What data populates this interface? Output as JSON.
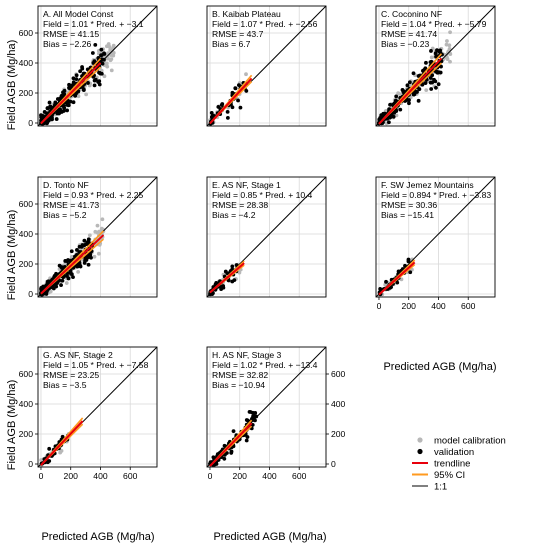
{
  "figure": {
    "shared_axes": {
      "xlabel": "Predicted AGB (Mg/ha)",
      "ylabel": "Field AGB (Mg/ha)",
      "xlim": [
        -20,
        780
      ],
      "ylim": [
        -20,
        780
      ],
      "ticks": [
        0,
        200,
        400,
        600
      ],
      "grid": true
    },
    "legend": {
      "placement": "bottom-right",
      "items": [
        {
          "label": "model calibration",
          "kind": "point",
          "color": "#b8b8b8"
        },
        {
          "label": "validation",
          "kind": "point",
          "color": "#000000"
        },
        {
          "label": "trendline",
          "kind": "line",
          "color": "#e8000b"
        },
        {
          "label": "95% CI",
          "kind": "line",
          "color": "#ff9a1f"
        },
        {
          "label": "1:1",
          "kind": "line",
          "color": "#000000"
        }
      ]
    }
  },
  "chart_data": [
    {
      "type": "scatter",
      "title": "A. All Model Const",
      "equation": "Field = 1.01 * Pred. + −3.1",
      "rmse": "RMSE = 41.15",
      "bias": "Bias = −2.26",
      "slope": 1.01,
      "intercept": -3.1,
      "calib_max": 600,
      "valid_max": 520,
      "spread": 45,
      "n_calib": 220,
      "n_valid": 260,
      "trend_range": [
        0,
        400
      ]
    },
    {
      "type": "scatter",
      "title": "B. Kaibab Plateau",
      "equation": "Field = 1.07 * Pred. + −2.56",
      "rmse": "RMSE = 43.7",
      "bias": "Bias = 6.7",
      "slope": 1.07,
      "intercept": -2.56,
      "calib_max": 330,
      "valid_max": 300,
      "spread": 38,
      "n_calib": 30,
      "n_valid": 45,
      "trend_range": [
        0,
        280
      ]
    },
    {
      "type": "scatter",
      "title": "C. Coconino NF",
      "equation": "Field = 1.04 * Pred. + −5.79",
      "rmse": "RMSE = 41.74",
      "bias": "Bias = −0.23",
      "slope": 1.04,
      "intercept": -5.79,
      "calib_max": 600,
      "valid_max": 520,
      "spread": 45,
      "n_calib": 200,
      "n_valid": 220,
      "trend_range": [
        0,
        420
      ]
    },
    {
      "type": "scatter",
      "title": "D. Tonto NF",
      "equation": "Field = 0.93 * Pred. + 2.25",
      "rmse": "RMSE = 41.73",
      "bias": "Bias = −5.2",
      "slope": 0.93,
      "intercept": 2.25,
      "calib_max": 520,
      "valid_max": 420,
      "spread": 42,
      "n_calib": 180,
      "n_valid": 220,
      "trend_range": [
        0,
        420
      ]
    },
    {
      "type": "scatter",
      "title": "E. AS NF, Stage 1",
      "equation": "Field = 0.85 * Pred. + 10.4",
      "rmse": "RMSE = 28.38",
      "bias": "Bias = −4.2",
      "slope": 0.85,
      "intercept": 10.4,
      "calib_max": 260,
      "valid_max": 240,
      "spread": 25,
      "n_calib": 35,
      "n_valid": 45,
      "trend_range": [
        0,
        230
      ]
    },
    {
      "type": "scatter",
      "title": "F. SW Jemez Mountains",
      "equation": "Field = 0.894 * Pred. + −3.83",
      "rmse": "RMSE = 30.36",
      "bias": "Bias = −15.41",
      "slope": 0.894,
      "intercept": -3.83,
      "calib_max": 280,
      "valid_max": 260,
      "spread": 28,
      "n_calib": 30,
      "n_valid": 35,
      "trend_range": [
        0,
        240
      ]
    },
    {
      "type": "scatter",
      "title": "G. AS NF, Stage 2",
      "equation": "Field = 1.05 * Pred. + −7.58",
      "rmse": "RMSE = 23.25",
      "bias": "Bias = −3.5",
      "slope": 1.05,
      "intercept": -7.58,
      "calib_max": 240,
      "valid_max": 230,
      "spread": 22,
      "n_calib": 20,
      "n_valid": 40,
      "trend_range": [
        0,
        280
      ]
    },
    {
      "type": "scatter",
      "title": "H. AS NF, Stage 3",
      "equation": "Field = 1.02 * Pred. + −13.4",
      "rmse": "RMSE = 32.82",
      "bias": "Bias = −10.94",
      "slope": 1.02,
      "intercept": -13.4,
      "calib_max": 320,
      "valid_max": 380,
      "spread": 30,
      "n_calib": 0,
      "n_valid": 120,
      "trend_range": [
        0,
        280
      ]
    }
  ]
}
